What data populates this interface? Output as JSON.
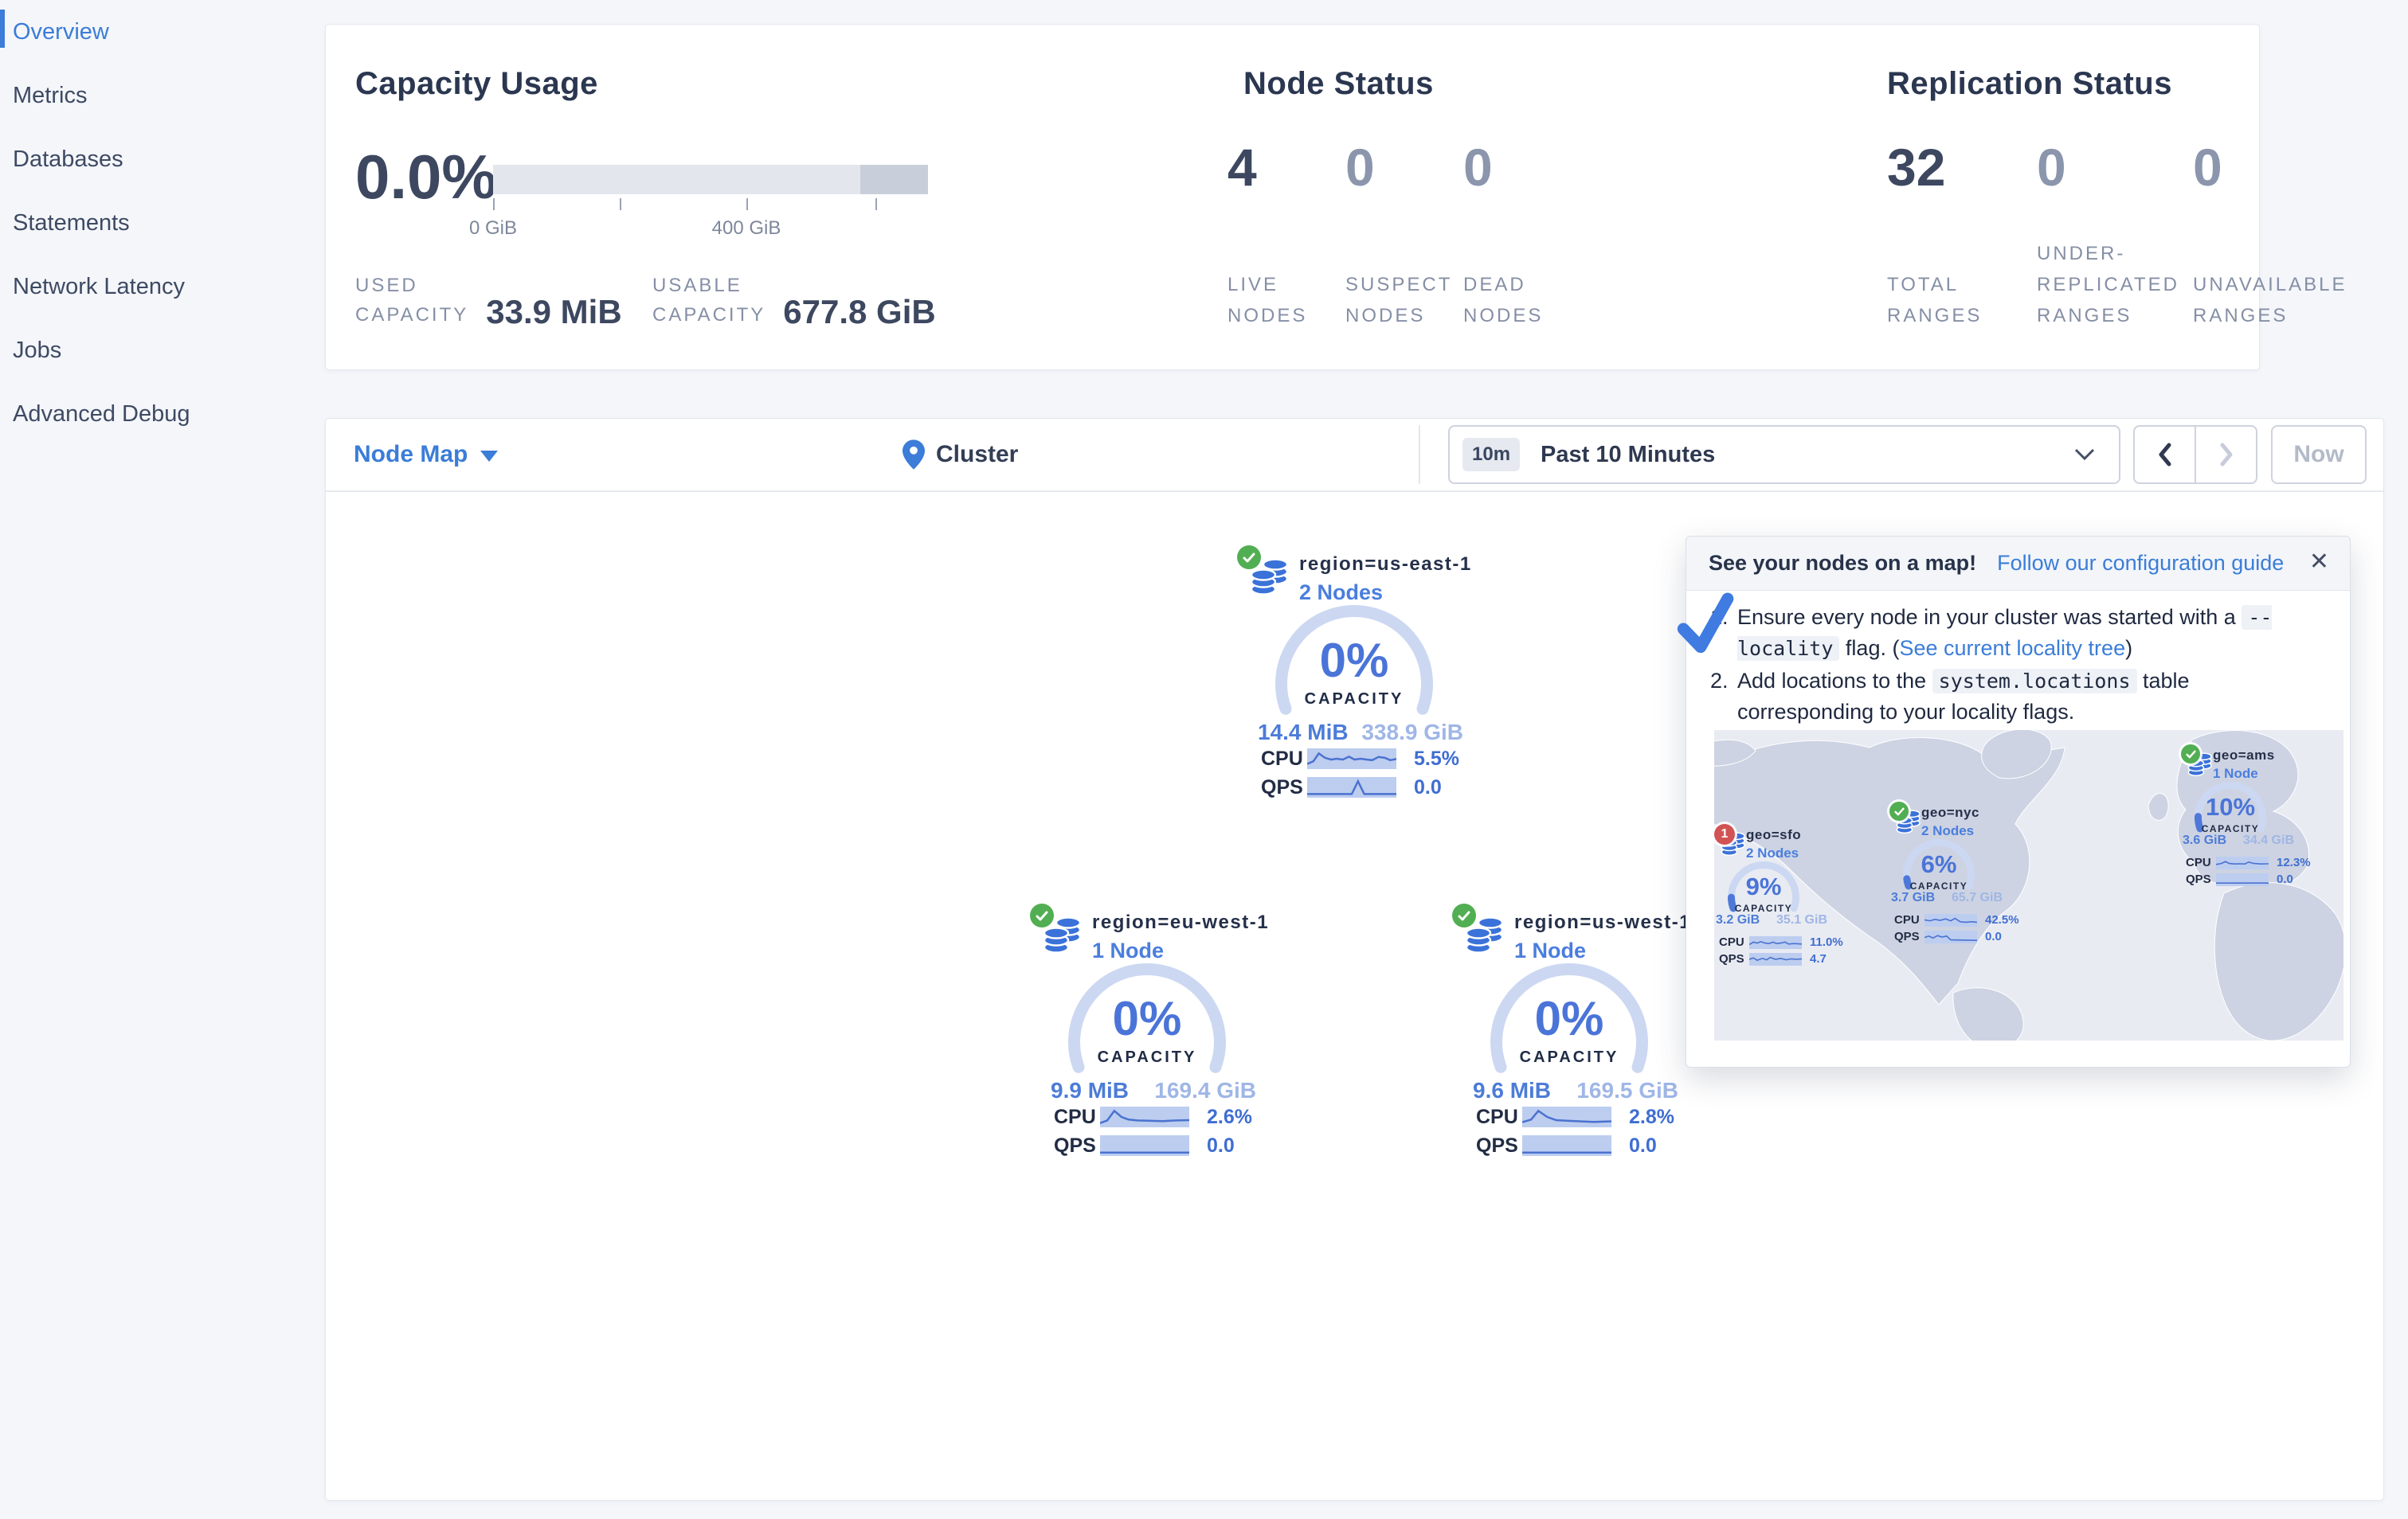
{
  "accent_colors": {
    "link_blue": "#3b7dd8",
    "gauge_blue": "#4e78d8",
    "gauge_track": "#ccd8f2",
    "ok_green": "#52ae52",
    "warn_red": "#d25353"
  },
  "sidebar": {
    "items": [
      {
        "label": "Overview",
        "active": true
      },
      {
        "label": "Metrics",
        "active": false
      },
      {
        "label": "Databases",
        "active": false
      },
      {
        "label": "Statements",
        "active": false
      },
      {
        "label": "Network Latency",
        "active": false
      },
      {
        "label": "Jobs",
        "active": false
      },
      {
        "label": "Advanced Debug",
        "active": false
      }
    ]
  },
  "stats": {
    "capacity": {
      "title": "Capacity Usage",
      "percent": "0.0%",
      "tick_labels": [
        "0 GiB",
        "400 GiB"
      ],
      "used_label": "USED\nCAPACITY",
      "used_value": "33.9 MiB",
      "usable_label": "USABLE\nCAPACITY",
      "usable_value": "677.8 GiB",
      "bar": {
        "fill_pct": 0,
        "reserved_start_pct": 84.5,
        "reserved_end_pct": 100
      }
    },
    "nodes": {
      "title": "Node Status",
      "cols": [
        {
          "value": "4",
          "label": "LIVE\nNODES",
          "dim": false
        },
        {
          "value": "0",
          "label": "SUSPECT\nNODES",
          "dim": true
        },
        {
          "value": "0",
          "label": "DEAD\nNODES",
          "dim": true
        }
      ]
    },
    "replication": {
      "title": "Replication Status",
      "cols": [
        {
          "value": "32",
          "label": "TOTAL\nRANGES",
          "dim": false
        },
        {
          "value": "0",
          "label": "UNDER-\nREPLICATED\nRANGES",
          "dim": true
        },
        {
          "value": "0",
          "label": "UNAVAILABLE\nRANGES",
          "dim": true
        }
      ]
    }
  },
  "toolbar": {
    "view_selector": "Node Map",
    "breadcrumb": "Cluster",
    "time_badge": "10m",
    "time_label": "Past 10 Minutes",
    "prev_label": "previous-time-window",
    "next_label": "next-time-window",
    "now_label": "Now"
  },
  "node_groups": [
    {
      "title": "region=us-east-1",
      "subtitle": "2 Nodes",
      "status": "ok",
      "capacity_percent": "0%",
      "capacity_label": "CAPACITY",
      "capacity_fill": 0,
      "used": "14.4 MiB",
      "total": "338.9 GiB",
      "cpu_label": "CPU",
      "cpu_value": "5.5%",
      "qps_label": "QPS",
      "qps_value": "0.0",
      "cpu_spark": [
        [
          0,
          0.2
        ],
        [
          0.07,
          0.35
        ],
        [
          0.13,
          0.8
        ],
        [
          0.2,
          0.55
        ],
        [
          0.27,
          0.45
        ],
        [
          0.33,
          0.5
        ],
        [
          0.4,
          0.45
        ],
        [
          0.47,
          0.62
        ],
        [
          0.53,
          0.45
        ],
        [
          0.6,
          0.5
        ],
        [
          0.67,
          0.45
        ],
        [
          0.73,
          0.42
        ],
        [
          0.8,
          0.6
        ],
        [
          0.87,
          0.55
        ],
        [
          0.93,
          0.42
        ],
        [
          1,
          0.48
        ]
      ],
      "qps_spark": [
        [
          0,
          0.12
        ],
        [
          0.5,
          0.12
        ],
        [
          0.57,
          0.85
        ],
        [
          0.64,
          0.12
        ],
        [
          1,
          0.12
        ]
      ]
    },
    {
      "title": "region=eu-west-1",
      "subtitle": "1 Node",
      "status": "ok",
      "capacity_percent": "0%",
      "capacity_label": "CAPACITY",
      "capacity_fill": 0,
      "used": "9.9 MiB",
      "total": "169.4 GiB",
      "cpu_label": "CPU",
      "cpu_value": "2.6%",
      "qps_label": "QPS",
      "qps_value": "0.0",
      "cpu_spark": [
        [
          0,
          0.15
        ],
        [
          0.08,
          0.3
        ],
        [
          0.16,
          0.85
        ],
        [
          0.24,
          0.5
        ],
        [
          0.32,
          0.35
        ],
        [
          0.42,
          0.3
        ],
        [
          0.55,
          0.28
        ],
        [
          0.7,
          0.26
        ],
        [
          0.85,
          0.3
        ],
        [
          1,
          0.32
        ]
      ],
      "qps_spark": [
        [
          0,
          0.1
        ],
        [
          1,
          0.1
        ]
      ]
    },
    {
      "title": "region=us-west-1",
      "subtitle": "1 Node",
      "status": "ok",
      "capacity_percent": "0%",
      "capacity_label": "CAPACITY",
      "capacity_fill": 0,
      "used": "9.6 MiB",
      "total": "169.5 GiB",
      "cpu_label": "CPU",
      "cpu_value": "2.8%",
      "qps_label": "QPS",
      "qps_value": "0.0",
      "cpu_spark": [
        [
          0,
          0.2
        ],
        [
          0.1,
          0.35
        ],
        [
          0.18,
          0.85
        ],
        [
          0.28,
          0.5
        ],
        [
          0.38,
          0.32
        ],
        [
          0.5,
          0.28
        ],
        [
          0.65,
          0.25
        ],
        [
          0.8,
          0.22
        ],
        [
          1,
          0.25
        ]
      ],
      "qps_spark": [
        [
          0,
          0.1
        ],
        [
          1,
          0.1
        ]
      ]
    }
  ],
  "map_tooltip": {
    "title": "See your nodes on a map!",
    "link": "Follow our configuration guide",
    "close": "✕",
    "steps": [
      {
        "num": "1.",
        "segments": [
          {
            "text": "Ensure every node in your cluster was started with a "
          },
          {
            "code": "--locality"
          },
          {
            "text": " flag. ("
          },
          {
            "link": "See current locality tree"
          },
          {
            "text": ")"
          }
        ]
      },
      {
        "num": "2.",
        "segments": [
          {
            "text": "Add locations to the "
          },
          {
            "code": "system.locations"
          },
          {
            "text": " table corresponding to your locality flags."
          }
        ]
      }
    ],
    "mini_groups": [
      {
        "title": "geo=sfo",
        "subtitle": "2 Nodes",
        "status": "error",
        "badge": "1",
        "capacity_percent": "9%",
        "capacity_label": "CAPACITY",
        "capacity_fill": 9,
        "used": "3.2 GiB",
        "total": "35.1 GiB",
        "cpu_label": "CPU",
        "cpu_value": "11.0%",
        "qps_label": "QPS",
        "qps_value": "4.7",
        "cpu_spark": [
          [
            0,
            0.3
          ],
          [
            0.08,
            0.55
          ],
          [
            0.15,
            0.45
          ],
          [
            0.22,
            0.6
          ],
          [
            0.3,
            0.45
          ],
          [
            0.38,
            0.4
          ],
          [
            0.45,
            0.55
          ],
          [
            0.52,
            0.4
          ],
          [
            0.6,
            0.45
          ],
          [
            0.68,
            0.55
          ],
          [
            0.75,
            0.35
          ],
          [
            0.85,
            0.4
          ],
          [
            1,
            0.35
          ]
        ],
        "qps_spark": [
          [
            0,
            0.5
          ],
          [
            0.08,
            0.65
          ],
          [
            0.15,
            0.4
          ],
          [
            0.25,
            0.6
          ],
          [
            0.33,
            0.45
          ],
          [
            0.4,
            0.7
          ],
          [
            0.5,
            0.5
          ],
          [
            0.6,
            0.6
          ],
          [
            0.7,
            0.45
          ],
          [
            0.8,
            0.55
          ],
          [
            0.9,
            0.5
          ],
          [
            1,
            0.55
          ]
        ]
      },
      {
        "title": "geo=nyc",
        "subtitle": "2 Nodes",
        "status": "ok",
        "badge": "",
        "capacity_percent": "6%",
        "capacity_label": "CAPACITY",
        "capacity_fill": 6,
        "used": "3.7 GiB",
        "total": "65.7 GiB",
        "cpu_label": "CPU",
        "cpu_value": "42.5%",
        "qps_label": "QPS",
        "qps_value": "0.0",
        "cpu_spark": [
          [
            0,
            0.55
          ],
          [
            0.1,
            0.45
          ],
          [
            0.2,
            0.6
          ],
          [
            0.3,
            0.5
          ],
          [
            0.4,
            0.65
          ],
          [
            0.5,
            0.45
          ],
          [
            0.58,
            0.7
          ],
          [
            0.68,
            0.35
          ],
          [
            0.78,
            0.3
          ],
          [
            0.9,
            0.35
          ],
          [
            1,
            0.3
          ]
        ],
        "qps_spark": [
          [
            0,
            0.45
          ],
          [
            0.08,
            0.6
          ],
          [
            0.16,
            0.4
          ],
          [
            0.25,
            0.65
          ],
          [
            0.33,
            0.5
          ],
          [
            0.42,
            0.6
          ],
          [
            0.5,
            0.2
          ],
          [
            1,
            0.15
          ]
        ]
      },
      {
        "title": "geo=ams",
        "subtitle": "1 Node",
        "status": "ok",
        "badge": "",
        "capacity_percent": "10%",
        "capacity_label": "CAPACITY",
        "capacity_fill": 10,
        "used": "3.6 GiB",
        "total": "34.4 GiB",
        "cpu_label": "CPU",
        "cpu_value": "12.3%",
        "qps_label": "QPS",
        "qps_value": "0.0",
        "cpu_spark": [
          [
            0,
            0.35
          ],
          [
            0.1,
            0.45
          ],
          [
            0.18,
            0.65
          ],
          [
            0.25,
            0.45
          ],
          [
            0.35,
            0.4
          ],
          [
            0.45,
            0.42
          ],
          [
            0.55,
            0.4
          ],
          [
            0.62,
            0.6
          ],
          [
            0.72,
            0.45
          ],
          [
            0.85,
            0.4
          ],
          [
            1,
            0.42
          ]
        ],
        "qps_spark": [
          [
            0,
            0.15
          ],
          [
            1,
            0.15
          ]
        ]
      }
    ]
  }
}
